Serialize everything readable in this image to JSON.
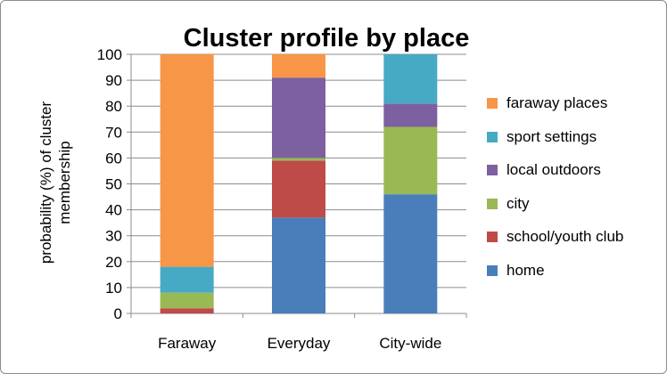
{
  "chart_data": {
    "type": "bar",
    "stacked": true,
    "title": "Cluster profile by place",
    "ylabel": "probability (%) of cluster membership",
    "xlabel": "",
    "ylim": [
      0,
      100
    ],
    "yticks": [
      0,
      10,
      20,
      30,
      40,
      50,
      60,
      70,
      80,
      90,
      100
    ],
    "grid": true,
    "legend_position": "right",
    "categories": [
      "Faraway",
      "Everyday",
      "City-wide"
    ],
    "series": [
      {
        "name": "home",
        "color": "#4a7ebb",
        "values": [
          0,
          37,
          46
        ]
      },
      {
        "name": "school/youth club",
        "color": "#be4b48",
        "values": [
          2,
          22,
          0
        ]
      },
      {
        "name": "city",
        "color": "#98b954",
        "values": [
          6,
          1,
          26
        ]
      },
      {
        "name": "local outdoors",
        "color": "#7d60a0",
        "values": [
          0,
          31,
          9
        ]
      },
      {
        "name": "sport settings",
        "color": "#46aac5",
        "values": [
          10,
          0,
          19
        ]
      },
      {
        "name": "faraway places",
        "color": "#f79646",
        "values": [
          82,
          9,
          0
        ]
      }
    ]
  }
}
